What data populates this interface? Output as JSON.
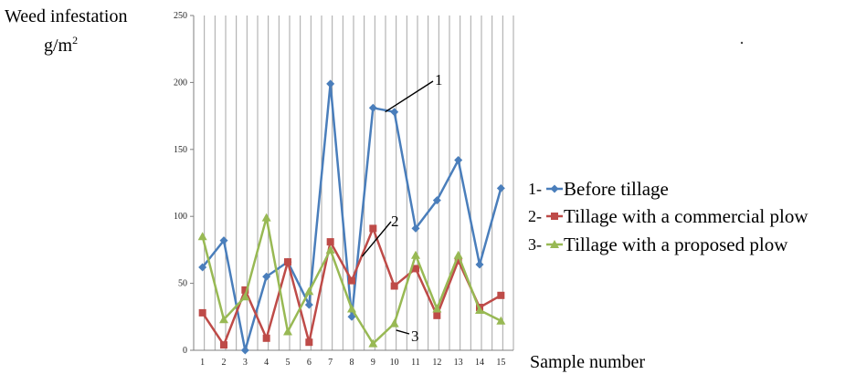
{
  "chart_data": {
    "type": "line",
    "ylabel_line1": "Weed infestation",
    "ylabel_line2_base": "g/m",
    "ylabel_line2_sup": "2",
    "xlabel": "Sample number",
    "x": [
      1,
      2,
      3,
      4,
      5,
      6,
      7,
      8,
      9,
      10,
      11,
      12,
      13,
      14,
      15
    ],
    "ylim": [
      0,
      250
    ],
    "yticks": [
      0,
      50,
      100,
      150,
      200,
      250
    ],
    "grid": "vertical",
    "legend_position": "right",
    "series": [
      {
        "name": "Before tillage",
        "number": "1-",
        "color": "#4a7ebb",
        "marker": "diamond",
        "values": [
          62,
          82,
          0,
          55,
          66,
          34,
          199,
          25,
          181,
          178,
          91,
          112,
          142,
          64,
          121
        ]
      },
      {
        "name": "Tillage with a commercial plow",
        "number": "2-",
        "color": "#be4b48",
        "marker": "square",
        "values": [
          28,
          4,
          45,
          9,
          66,
          6,
          81,
          52,
          91,
          48,
          61,
          26,
          67,
          32,
          41
        ]
      },
      {
        "name": "Tillage with a proposed plow",
        "number": "3-",
        "color": "#98b954",
        "marker": "triangle",
        "values": [
          85,
          23,
          40,
          99,
          14,
          44,
          75,
          31,
          5,
          20,
          71,
          31,
          71,
          30,
          22
        ]
      }
    ],
    "annotations": [
      {
        "text": "1",
        "series_index": 0
      },
      {
        "text": "2",
        "series_index": 1
      },
      {
        "text": "3",
        "series_index": 2
      }
    ]
  }
}
